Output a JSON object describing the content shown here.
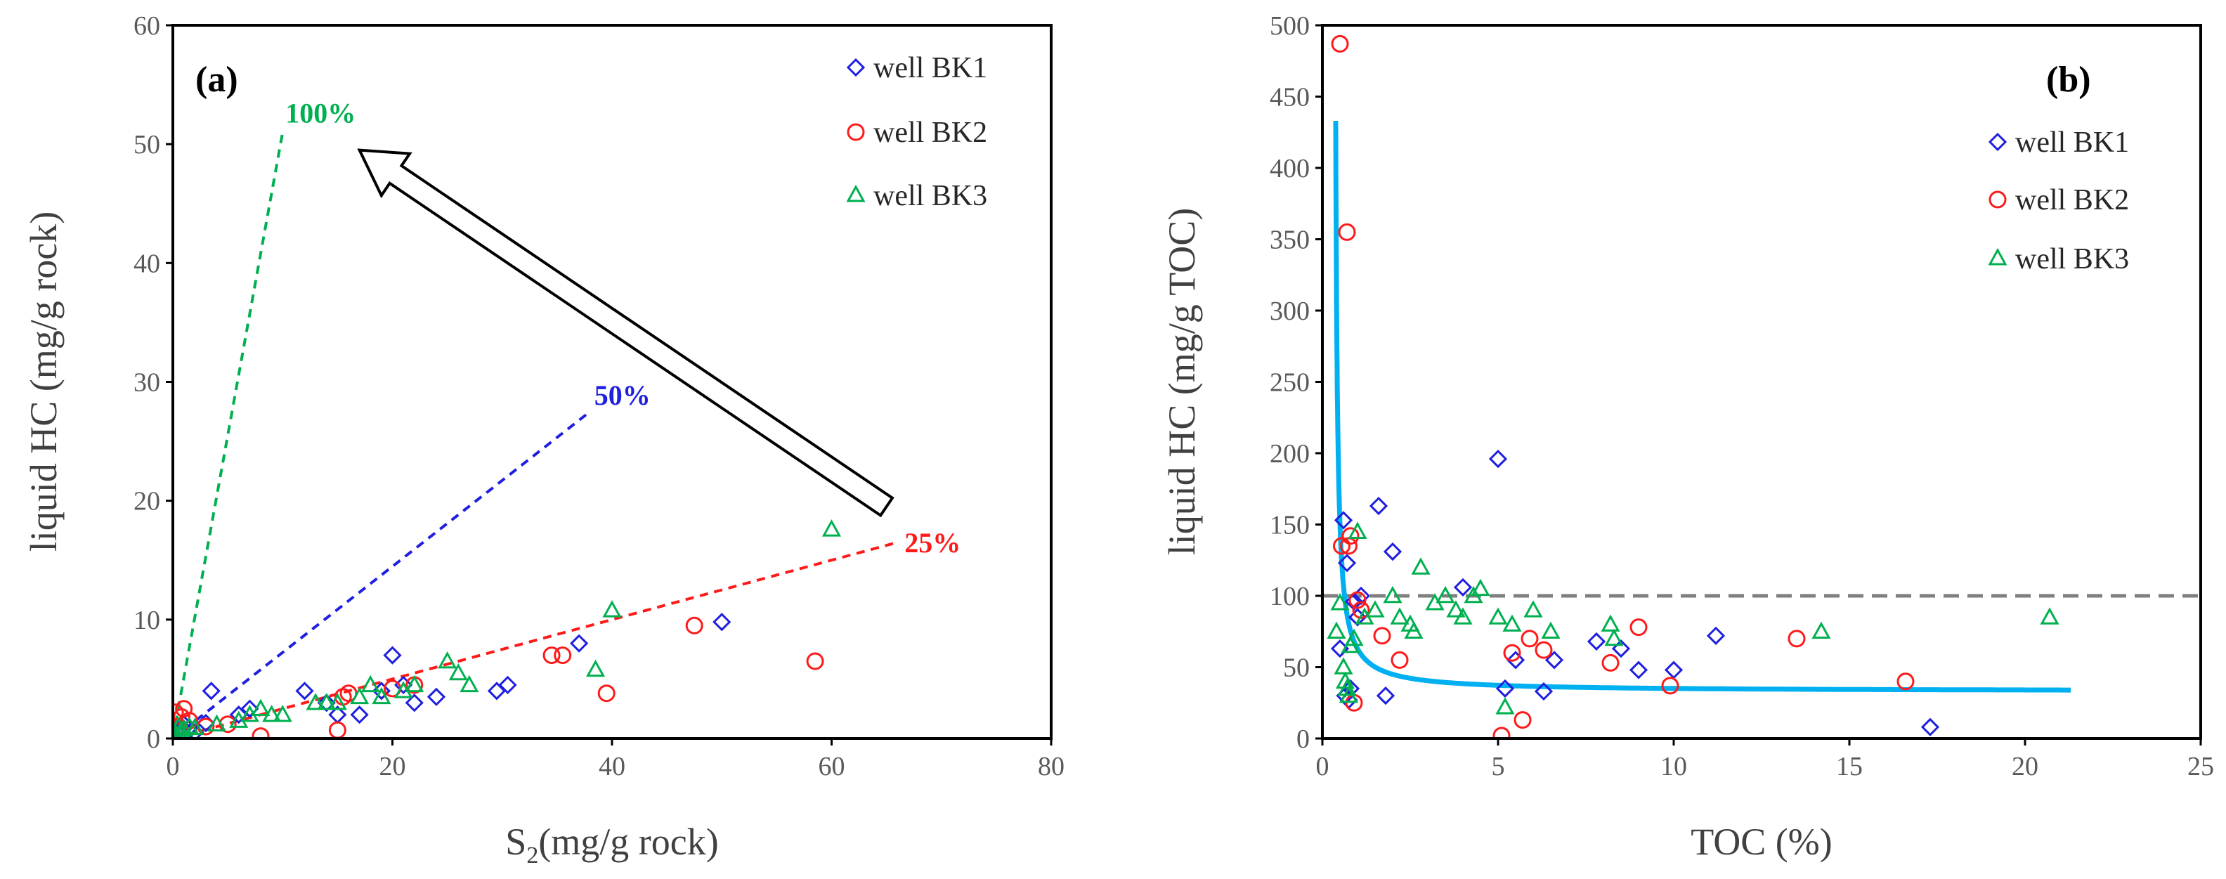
{
  "chart_data": [
    {
      "type": "scatter",
      "panel_label": "(a)",
      "xlabel_main": "S",
      "xlabel_sub": "2",
      "xlabel_rest": "(mg/g  rock)",
      "ylabel": "liquid HC  (mg/g  rock)",
      "xlim": [
        0,
        80
      ],
      "ylim": [
        0,
        60
      ],
      "xticks": [
        "0",
        "20",
        "40",
        "60",
        "80"
      ],
      "yticks": [
        "0",
        "10",
        "20",
        "30",
        "40",
        "50",
        "60"
      ],
      "legend": {
        "position": "top-right",
        "entries": [
          "well BK1",
          "well BK2",
          "well BK3"
        ]
      },
      "reference_lines": [
        {
          "label": "100%",
          "color": "#00b050",
          "x": [
            0,
            10
          ],
          "y": [
            0,
            51
          ]
        },
        {
          "label": "50%",
          "color": "#1f1fdf",
          "x": [
            0,
            38
          ],
          "y": [
            0,
            27.5
          ]
        },
        {
          "label": "25%",
          "color": "#ff1a1a",
          "x": [
            0,
            66
          ],
          "y": [
            0,
            16.5
          ]
        }
      ],
      "arrow": {
        "from": [
          65,
          19.5
        ],
        "to": [
          17,
          49.5
        ]
      },
      "series": [
        {
          "name": "well BK1",
          "marker": "diamond",
          "color": "#1f1fdf",
          "x": [
            0.3,
            0.5,
            0.8,
            1,
            1.5,
            2,
            3,
            3.5,
            6,
            7,
            12,
            14,
            15,
            17,
            19,
            20,
            21,
            22,
            24,
            29.5,
            30.5,
            37,
            50
          ],
          "y": [
            0.5,
            0.8,
            1,
            1.2,
            0.9,
            0.5,
            1.3,
            4,
            2,
            2.5,
            4,
            3,
            2,
            2,
            4,
            7,
            4.5,
            3,
            3.5,
            4,
            4.5,
            8,
            9.8
          ]
        },
        {
          "name": "well BK2",
          "marker": "circle",
          "color": "#ff1a1a",
          "x": [
            0.2,
            0.5,
            0.8,
            1,
            1.5,
            3,
            5,
            8,
            15,
            15.5,
            16,
            20,
            22,
            34.5,
            35.5,
            39.5,
            47.5,
            58.5
          ],
          "y": [
            2.2,
            1,
            1.8,
            2.5,
            1.5,
            1,
            1.2,
            0.2,
            0.7,
            3.5,
            3.8,
            4.2,
            4.5,
            7,
            7,
            3.8,
            9.5,
            6.5
          ]
        },
        {
          "name": "well BK3",
          "marker": "triangle",
          "color": "#00b050",
          "x": [
            0.1,
            0.2,
            0.3,
            0.5,
            0.6,
            0.8,
            1,
            1.5,
            2,
            4,
            6,
            7,
            8,
            9,
            10,
            13,
            14,
            15,
            17,
            18,
            19,
            21,
            22,
            25,
            26,
            27,
            38.5,
            40,
            60
          ],
          "y": [
            0.2,
            0.5,
            0.3,
            1,
            0.4,
            0.6,
            0.8,
            1,
            0.9,
            1.2,
            1.5,
            2,
            2.5,
            2,
            2,
            3,
            3,
            3,
            3.5,
            4.5,
            3.5,
            4,
            4.5,
            6.5,
            5.5,
            4.5,
            5.8,
            10.8,
            17.6
          ]
        }
      ]
    },
    {
      "type": "scatter",
      "panel_label": "(b)",
      "xlabel": "TOC (%)",
      "ylabel": "liquid HC  (mg/g  TOC)",
      "xlim": [
        0,
        25
      ],
      "ylim": [
        0,
        500
      ],
      "xticks": [
        "0",
        "5",
        "10",
        "15",
        "20",
        "25"
      ],
      "yticks": [
        "0",
        "50",
        "100",
        "150",
        "200",
        "250",
        "300",
        "350",
        "400",
        "450",
        "500"
      ],
      "legend": {
        "position": "top-right",
        "entries": [
          "well BK1",
          "well BK2",
          "well BK3"
        ]
      },
      "reference_line": {
        "y": 100,
        "style": "dashed",
        "color": "#7f7f7f"
      },
      "fit_curve": {
        "color": "#00b0f0",
        "formula": "y = 33 + 20 / (x - 0.33)",
        "x_range": [
          0.38,
          21.3
        ]
      },
      "series": [
        {
          "name": "well BK1",
          "marker": "diamond",
          "color": "#1f1fdf",
          "x": [
            0.5,
            0.6,
            0.65,
            0.7,
            0.75,
            0.8,
            0.9,
            1,
            1.1,
            1.6,
            1.8,
            2,
            4,
            5,
            5.2,
            5.5,
            6.3,
            6.6,
            7.8,
            8.5,
            9,
            10,
            11.2,
            17.3
          ],
          "y": [
            63,
            153,
            30,
            123,
            27,
            35,
            96,
            85,
            100,
            163,
            30,
            131,
            106,
            196,
            35,
            55,
            33,
            55,
            68,
            63,
            48,
            48,
            72,
            8
          ]
        },
        {
          "name": "well BK2",
          "marker": "circle",
          "color": "#ff1a1a",
          "x": [
            0.5,
            0.55,
            0.7,
            0.75,
            0.8,
            0.9,
            1,
            1.1,
            1.7,
            2.2,
            5.1,
            5.4,
            5.7,
            5.9,
            6.3,
            8.2,
            9,
            9.9,
            13.5,
            16.6
          ],
          "y": [
            487,
            135,
            355,
            135,
            142,
            25,
            97,
            90,
            72,
            55,
            2,
            60,
            13,
            70,
            62,
            53,
            78,
            37,
            70,
            40
          ]
        },
        {
          "name": "well BK3",
          "marker": "triangle",
          "color": "#00b050",
          "x": [
            0.4,
            0.5,
            0.6,
            0.65,
            0.7,
            0.75,
            0.8,
            0.9,
            1,
            1.2,
            1.5,
            2,
            2.2,
            2.5,
            2.6,
            2.8,
            3.2,
            3.5,
            3.8,
            4,
            4.3,
            4.5,
            5,
            5.2,
            5.4,
            6,
            6.5,
            8.2,
            8.3,
            14.2,
            20.7
          ],
          "y": [
            75,
            95,
            50,
            40,
            35,
            30,
            65,
            70,
            145,
            85,
            90,
            100,
            85,
            80,
            75,
            120,
            95,
            100,
            90,
            85,
            100,
            105,
            85,
            22,
            80,
            90,
            75,
            80,
            70,
            75,
            85
          ]
        }
      ]
    }
  ]
}
